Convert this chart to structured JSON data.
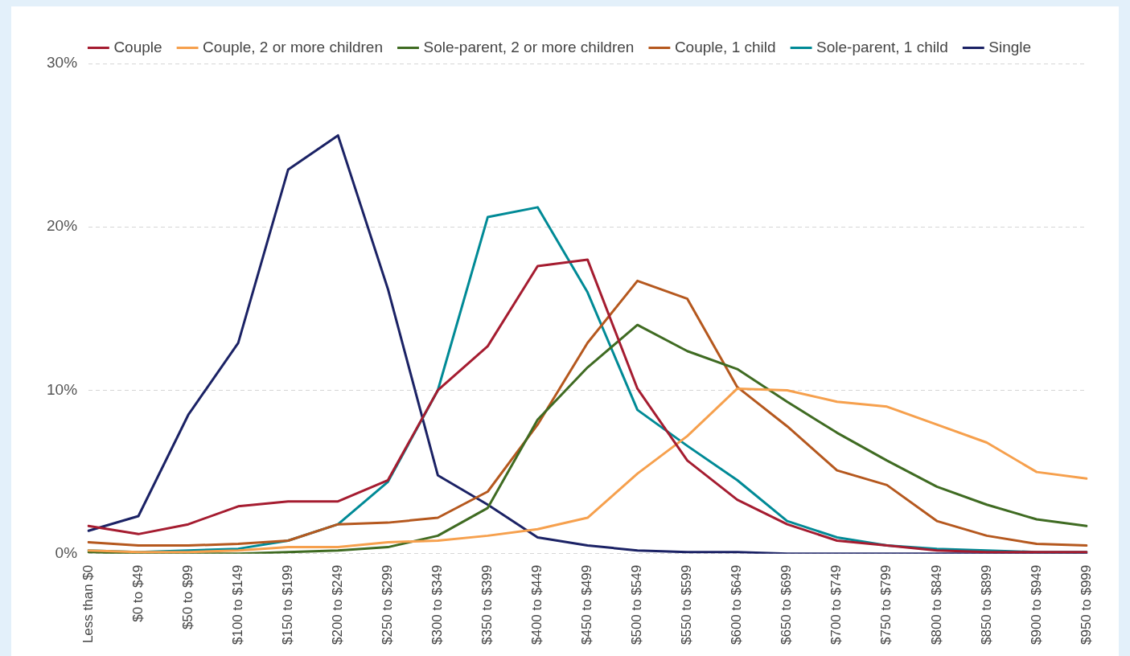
{
  "chart_data": {
    "type": "line",
    "categories": [
      "Less than $0",
      "$0 to $49",
      "$50 to $99",
      "$100 to $149",
      "$150 to $199",
      "$200 to $249",
      "$250 to $299",
      "$300 to $349",
      "$350 to $399",
      "$400 to $449",
      "$450 to $499",
      "$500 to $549",
      "$550 to $599",
      "$600 to $649",
      "$650 to $699",
      "$700 to $749",
      "$750 to $799",
      "$800 to $849",
      "$850 to $899",
      "$900 to $949",
      "$950 to $999"
    ],
    "series": [
      {
        "name": "Couple",
        "color": "#a51c30",
        "values": [
          1.7,
          1.2,
          1.8,
          2.9,
          3.2,
          3.2,
          4.5,
          10.0,
          12.7,
          17.6,
          18.0,
          10.1,
          5.7,
          3.3,
          1.8,
          0.8,
          0.5,
          0.2,
          0.1,
          0.1,
          0.1
        ]
      },
      {
        "name": "Couple, 2 or more children",
        "color": "#f6a04d",
        "values": [
          0.2,
          0.1,
          0.1,
          0.2,
          0.4,
          0.4,
          0.7,
          0.8,
          1.1,
          1.5,
          2.2,
          4.9,
          7.2,
          10.1,
          10.0,
          9.3,
          9.0,
          7.9,
          6.8,
          5.0,
          4.6
        ]
      },
      {
        "name": "Sole-parent, 2 or more children",
        "color": "#3f6b22",
        "values": [
          0.1,
          0.0,
          0.0,
          0.0,
          0.1,
          0.2,
          0.4,
          1.1,
          2.8,
          8.2,
          11.4,
          14.0,
          12.4,
          11.3,
          9.3,
          7.4,
          5.7,
          4.1,
          3.0,
          2.1,
          1.7
        ]
      },
      {
        "name": "Couple, 1 child",
        "color": "#b5581e",
        "values": [
          0.7,
          0.5,
          0.5,
          0.6,
          0.8,
          1.8,
          1.9,
          2.2,
          3.8,
          7.9,
          12.9,
          16.7,
          15.6,
          10.2,
          7.8,
          5.1,
          4.2,
          2.0,
          1.1,
          0.6,
          0.5
        ]
      },
      {
        "name": "Sole-parent, 1 child",
        "color": "#008a96",
        "values": [
          0.2,
          0.1,
          0.2,
          0.3,
          0.8,
          1.8,
          4.4,
          10.0,
          20.6,
          21.2,
          16.0,
          8.8,
          6.6,
          4.5,
          2.0,
          1.0,
          0.5,
          0.3,
          0.2,
          0.1,
          0.1
        ]
      },
      {
        "name": "Single",
        "color": "#1b2265",
        "values": [
          1.4,
          2.3,
          8.5,
          12.9,
          23.5,
          25.6,
          16.2,
          4.8,
          3.0,
          1.0,
          0.5,
          0.2,
          0.1,
          0.1,
          0.0,
          0.0,
          0.0,
          0.0,
          0.0,
          0.0,
          0.0
        ]
      }
    ],
    "ylim": [
      0,
      30
    ],
    "yticks": [
      {
        "value": 0,
        "label": "0%"
      },
      {
        "value": 10,
        "label": "10%"
      },
      {
        "value": 20,
        "label": "20%"
      },
      {
        "value": 30,
        "label": "30%"
      }
    ],
    "grid": "y",
    "legend": "top",
    "marker": "none",
    "line_style": "solid"
  }
}
